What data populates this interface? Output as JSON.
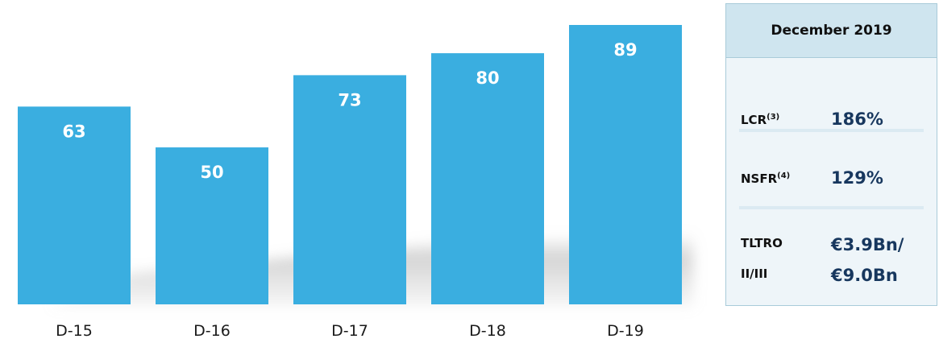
{
  "chart_data": {
    "type": "bar",
    "categories": [
      "D-15",
      "D-16",
      "D-17",
      "D-18",
      "D-19"
    ],
    "values": [
      63,
      50,
      73,
      80,
      89
    ],
    "data_labels": [
      "63",
      "50",
      "73",
      "80",
      "89"
    ],
    "ylim": [
      0,
      89
    ],
    "grid": false,
    "color": "#3aaee0"
  },
  "panel": {
    "header": "December 2019",
    "metrics": [
      {
        "label": "LCR",
        "sup": "(3)",
        "value": "186%"
      },
      {
        "label": "NSFR",
        "sup": "(4)",
        "value": "129%"
      },
      {
        "label_line1": "TLTRO",
        "label_line2": "II/III",
        "value_line1": "€3.9Bn/",
        "value_line2": "€9.0Bn"
      }
    ]
  }
}
